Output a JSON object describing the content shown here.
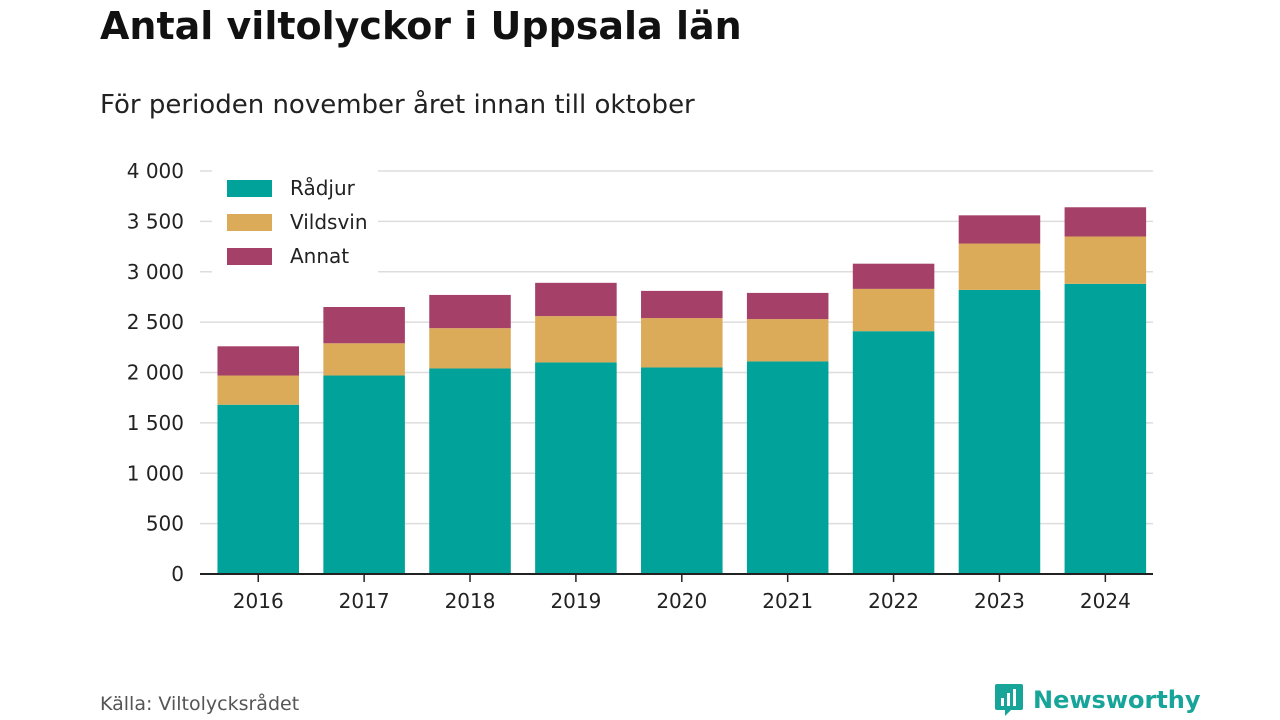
{
  "title": "Antal viltolyckor i Uppsala län",
  "subtitle": "För perioden november året innan till oktober",
  "source": "Källa: Viltolycksrådet",
  "brand": {
    "name": "Newsworthy",
    "icon": "newsworthy-logo-icon",
    "color": "#17a59a"
  },
  "chart_data": {
    "type": "bar",
    "stacked": true,
    "title": "Antal viltolyckor i Uppsala län",
    "subtitle": "För perioden november året innan till oktober",
    "xlabel": "",
    "ylabel": "",
    "ylim": [
      0,
      4000
    ],
    "yticks": [
      0,
      500,
      1000,
      1500,
      2000,
      2500,
      3000,
      3500,
      4000
    ],
    "ytick_labels": [
      "0",
      "500",
      "1 000",
      "1 500",
      "2 000",
      "2 500",
      "3 000",
      "3 500",
      "4 000"
    ],
    "grid": true,
    "legend_position": "top-left",
    "categories": [
      "2016",
      "2017",
      "2018",
      "2019",
      "2020",
      "2021",
      "2022",
      "2023",
      "2024"
    ],
    "series": [
      {
        "name": "Rådjur",
        "color": "#00a29a",
        "values": [
          1680,
          1970,
          2040,
          2100,
          2050,
          2110,
          2410,
          2820,
          2880
        ]
      },
      {
        "name": "Vildsvin",
        "color": "#dcab5a",
        "values": [
          290,
          320,
          400,
          460,
          490,
          420,
          420,
          460,
          470
        ]
      },
      {
        "name": "Annat",
        "color": "#a54168",
        "values": [
          290,
          360,
          330,
          330,
          270,
          260,
          250,
          280,
          290
        ]
      }
    ]
  }
}
